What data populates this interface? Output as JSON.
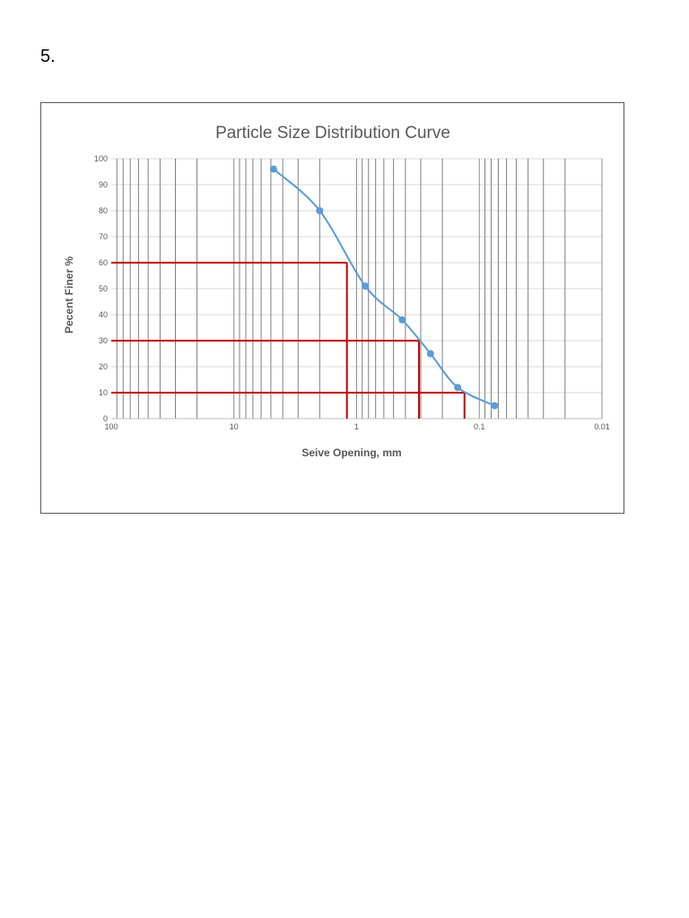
{
  "page": {
    "question_number": "5."
  },
  "chart_data": {
    "type": "scatter",
    "title": "Particle Size Distribution Curve",
    "xlabel": "Seive Opening, mm",
    "ylabel": "Pecent Finer %",
    "x_scale": "log",
    "x_reversed": true,
    "xlim": [
      100,
      0.01
    ],
    "ylim": [
      0,
      100
    ],
    "x_ticks": [
      {
        "value": 100,
        "label": "100"
      },
      {
        "value": 10,
        "label": "10"
      },
      {
        "value": 1,
        "label": "1"
      },
      {
        "value": 0.1,
        "label": "0.1"
      },
      {
        "value": 0.01,
        "label": "0.01"
      }
    ],
    "y_ticks": [
      0,
      10,
      20,
      30,
      40,
      50,
      60,
      70,
      80,
      90,
      100
    ],
    "grid": true,
    "series": [
      {
        "color": "#5b9bd5",
        "smooth": true,
        "points": [
          {
            "x": 4.75,
            "y": 96
          },
          {
            "x": 2.0,
            "y": 80
          },
          {
            "x": 0.85,
            "y": 51
          },
          {
            "x": 0.425,
            "y": 38
          },
          {
            "x": 0.25,
            "y": 25
          },
          {
            "x": 0.15,
            "y": 12
          },
          {
            "x": 0.075,
            "y": 5
          }
        ]
      }
    ],
    "reference_lines": [
      {
        "percent": 60,
        "size_mm": 1.2,
        "color": "#c00000"
      },
      {
        "percent": 30,
        "size_mm": 0.31,
        "color": "#c00000"
      },
      {
        "percent": 10,
        "size_mm": 0.132,
        "color": "#c00000"
      }
    ]
  }
}
